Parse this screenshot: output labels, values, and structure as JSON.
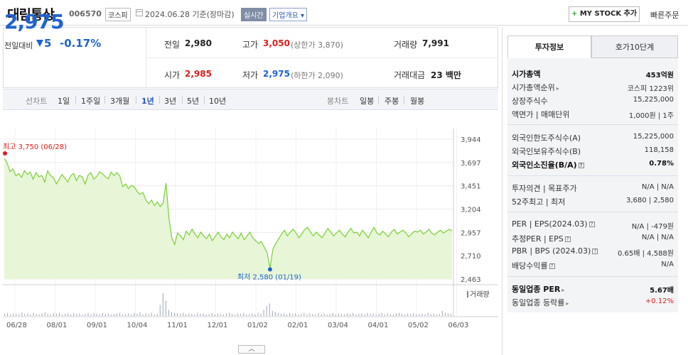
{
  "header": {
    "name": "대림통상",
    "code": "006570",
    "market": "코스피",
    "date_text": "2024.06.28 기준(장마감)",
    "realtime": "실시간",
    "company": "기업개요",
    "mystock": "MY STOCK 추가",
    "quick_order": "빠른주문"
  },
  "summary": {
    "price": "2,975",
    "change_label": "전일대비",
    "change_amount": "5",
    "change_percent": "-0.17%",
    "prev_label": "전일",
    "prev_value": "2,980",
    "high_label": "고가",
    "high_value": "3,050",
    "high_limit": "(상한가 3,870)",
    "volume_label": "거래량",
    "volume_value": "7,991",
    "open_label": "시가",
    "open_value": "2,985",
    "low_label": "저가",
    "low_value": "2,975",
    "low_limit": "(하한가 2,090)",
    "amount_label": "거래대금",
    "amount_value": "23 백만"
  },
  "periods": {
    "label": "선차트",
    "items": [
      "1일",
      "1주일",
      "3개월",
      "1년",
      "3년",
      "5년",
      "10년"
    ],
    "active": "1년",
    "candle_label": "봉차트",
    "candle_items": [
      "일봉",
      "주봉",
      "월봉"
    ]
  },
  "chart_data": {
    "type": "line",
    "y_ticks": [
      "3,944",
      "3,697",
      "3,451",
      "3,204",
      "2,957",
      "2,710",
      "2,463"
    ],
    "ylim": [
      2463,
      3944
    ],
    "x_ticks": [
      "06/28",
      "08/01",
      "09/01",
      "10/04",
      "11/01",
      "12/01",
      "01/02",
      "02/01",
      "03/04",
      "04/01",
      "05/02",
      "06/03"
    ],
    "high_annotation": "최고 3,750 (06/28)",
    "low_annotation": "최저 2,580 (01/19)",
    "volume_legend": "거래량",
    "series": [
      {
        "values": [
          3740,
          3690,
          3600,
          3630,
          3555,
          3580,
          3540,
          3610,
          3570,
          3595,
          3520,
          3590,
          3545,
          3560,
          3490,
          3610,
          3560,
          3540,
          3470,
          3520,
          3570,
          3530,
          3490,
          3555,
          3580,
          3505,
          3560,
          3545,
          3470,
          3565,
          3590,
          3520,
          3550,
          3600,
          3580,
          3545,
          3525,
          3595,
          3560,
          3590,
          3555,
          3440,
          3470,
          3420,
          3455,
          3440,
          3390,
          3360,
          3380,
          3300,
          3260,
          3300,
          3240,
          3280,
          3230,
          3270,
          3480,
          3110,
          2900,
          2830,
          2950,
          2920,
          2880,
          2970,
          2930,
          2990,
          2940,
          2900,
          2960,
          2920,
          2890,
          2940,
          2870,
          2910,
          2960,
          2910,
          2880,
          2940,
          2900,
          2960,
          2920,
          2890,
          2950,
          2880,
          2915,
          2960,
          2900,
          2870,
          2840,
          2860,
          2800,
          2740,
          2580,
          2780,
          2840,
          2890,
          2940,
          2980,
          2920,
          2960,
          2990,
          2950,
          2900,
          2940,
          2990,
          3010,
          2960,
          2920,
          2960,
          2930,
          2900,
          2950,
          3000,
          2960,
          2920,
          2950,
          2980,
          2940,
          2910,
          2960,
          3000,
          2950,
          2960,
          2920,
          2980,
          2940,
          2900,
          2960,
          3010,
          2950,
          2930,
          2970,
          2940,
          2910,
          2960,
          2990,
          2940,
          2960,
          2980,
          2950,
          2910,
          2940,
          2970,
          2960,
          2980,
          2940,
          2960,
          2990,
          2950,
          2930,
          2960,
          2980,
          2950,
          2970,
          2990,
          2975
        ]
      }
    ],
    "volume": [
      4,
      6,
      3,
      5,
      4,
      3,
      7,
      4,
      5,
      3,
      6,
      4,
      3,
      5,
      7,
      4,
      3,
      5,
      4,
      6,
      3,
      4,
      5,
      3,
      6,
      4,
      5,
      3,
      4,
      6,
      3,
      5,
      4,
      3,
      6,
      4,
      5,
      3,
      4,
      5,
      6,
      3,
      4,
      5,
      3,
      6,
      4,
      7,
      3,
      5,
      4,
      6,
      3,
      4,
      22,
      45,
      30,
      12,
      8,
      6,
      5,
      4,
      6,
      3,
      5,
      4,
      3,
      6,
      4,
      5,
      3,
      4,
      6,
      3,
      5,
      4,
      3,
      5,
      6,
      4,
      3,
      5,
      4,
      6,
      3,
      4,
      5,
      3,
      6,
      4,
      12,
      20,
      25,
      10,
      8,
      6,
      4,
      5,
      3,
      6,
      4,
      5,
      3,
      4,
      6,
      3,
      5,
      4,
      3,
      6,
      4,
      5,
      3,
      4,
      6,
      3,
      5,
      4,
      3,
      5,
      4,
      6,
      3,
      4,
      5,
      3,
      6,
      4,
      5,
      3,
      4,
      6,
      3,
      5,
      4,
      3,
      5,
      6,
      4,
      3,
      5,
      4,
      6,
      3,
      4,
      5,
      3,
      6,
      4,
      5,
      3,
      4,
      10,
      6,
      5,
      4
    ]
  },
  "invest": {
    "tab_invest": "투자정보",
    "tab_orderbook": "호가10단계",
    "market_cap_label": "시가총액",
    "market_cap_value": "453억원",
    "rank_label": "시가총액순위",
    "rank_value": "코스피 1223위",
    "shares_label": "상장주식수",
    "shares_value": "15,225,000",
    "face_label": "액면가 | 매매단위",
    "face_value": "1,000원 | 1주",
    "foreign_limit_label": "외국인한도주식수(A)",
    "foreign_limit_value": "15,225,000",
    "foreign_hold_label": "외국인보유주식수(B)",
    "foreign_hold_value": "118,158",
    "foreign_ratio_label": "외국인소진율(B/A)",
    "foreign_ratio_value": "0.78%",
    "opinion_label": "투자의견 | 목표주가",
    "opinion_value": "N/A | N/A",
    "week52_label": "52주최고 | 최저",
    "week52_value": "3,680 | 2,580",
    "per_label": "PER | EPS(2024.03)",
    "per_value": "N/A | -479원",
    "est_per_label": "추정PER | EPS",
    "est_per_value": "N/A | N/A",
    "pbr_label": "PBR | BPS (2024.03)",
    "pbr_value": "0.65배 | 4,588원",
    "dividend_label": "배당수익률",
    "dividend_value": "N/A",
    "industry_per_label": "동일업종 PER",
    "industry_per_value": "5.67배",
    "industry_rate_label": "동일업종 등락률",
    "industry_rate_value": "+0.12%"
  },
  "colors": {
    "red": "#d81f1f",
    "blue": "#1f62d0",
    "line": "#7ccf38",
    "fill": "#e7f6d6"
  }
}
